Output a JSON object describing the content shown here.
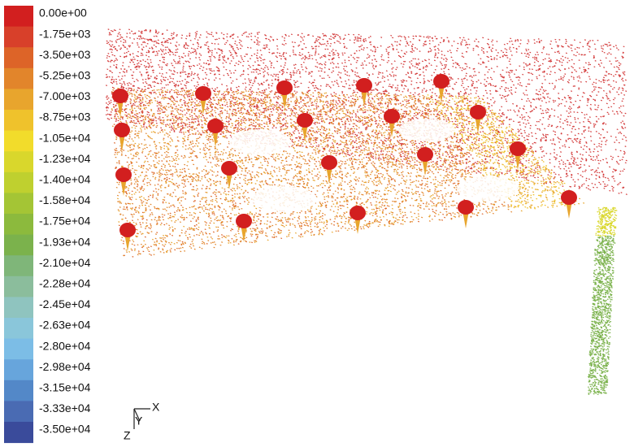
{
  "legend": {
    "labels": [
      "0.00e+00",
      "-1.75e+03",
      "-3.50e+03",
      "-5.25e+03",
      "-7.00e+03",
      "-8.75e+03",
      "-1.05e+04",
      "-1.23e+04",
      "-1.40e+04",
      "-1.58e+04",
      "-1.75e+04",
      "-1.93e+04",
      "-2.10e+04",
      "-2.28e+04",
      "-2.45e+04",
      "-2.63e+04",
      "-2.80e+04",
      "-2.98e+04",
      "-3.15e+04",
      "-3.33e+04",
      "-3.50e+04"
    ],
    "colors": [
      "#d21f1f",
      "#d8402a",
      "#dd6428",
      "#e2852b",
      "#e8a52d",
      "#efc22c",
      "#f2dc2b",
      "#d9d72c",
      "#bfd02f",
      "#a4c535",
      "#8cba3d",
      "#7bb24c",
      "#7fb679",
      "#8bbd9c",
      "#8fc4bf",
      "#8ac6da",
      "#7cbde6",
      "#67a5dc",
      "#5388c8",
      "#4a6bb3",
      "#3a4b9b"
    ]
  },
  "axes": {
    "x": "X",
    "y": "Y",
    "z": "Z"
  }
}
